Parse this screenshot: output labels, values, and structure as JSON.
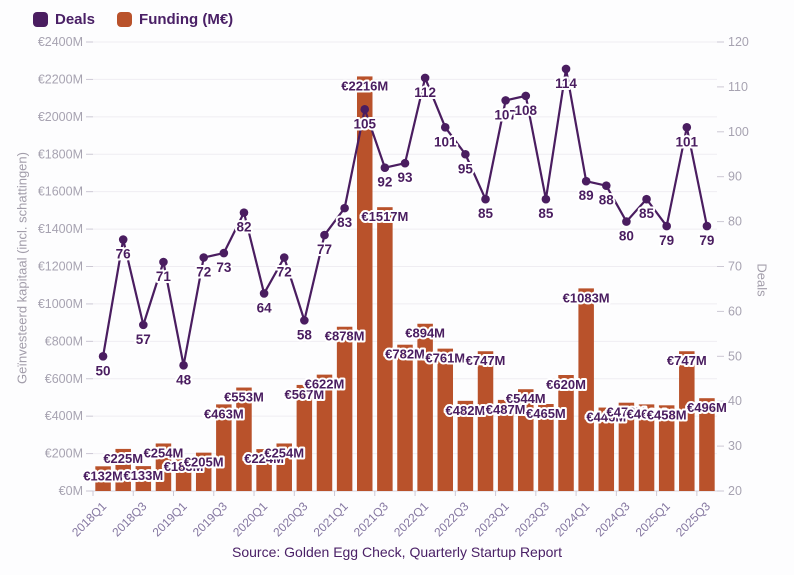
{
  "legend": {
    "items": [
      {
        "label": "Deals",
        "color": "#4a1d60"
      },
      {
        "label": "Funding (M€)",
        "color": "#b9522b"
      }
    ]
  },
  "source": {
    "text": "Source: Golden Egg Check, Quarterly Startup Report"
  },
  "chart_data": {
    "type": "combo",
    "categories": [
      "2018Q1",
      "2018Q2",
      "2018Q3",
      "2018Q4",
      "2019Q1",
      "2019Q2",
      "2019Q3",
      "2019Q4",
      "2020Q1",
      "2020Q2",
      "2020Q3",
      "2020Q4",
      "2021Q1",
      "2021Q2",
      "2021Q3",
      "2021Q4",
      "2022Q1",
      "2022Q2",
      "2022Q3",
      "2022Q4",
      "2023Q1",
      "2023Q2",
      "2023Q3",
      "2023Q4",
      "2024Q1",
      "2024Q2",
      "2024Q3",
      "2024Q4",
      "2025Q1",
      "2025Q2",
      "2025Q3"
    ],
    "series": [
      {
        "name": "Funding (M€)",
        "type": "bar",
        "axis": "left",
        "color": "#b9522b",
        "label_color": "#4a1d60",
        "label_prefix": "€",
        "label_suffix": "M",
        "values": [
          132,
          225,
          133,
          254,
          183,
          205,
          463,
          553,
          224,
          254,
          567,
          622,
          878,
          2216,
          1517,
          782,
          894,
          761,
          482,
          747,
          487,
          544,
          465,
          620,
          1083,
          446,
          472,
          463,
          458,
          747,
          496
        ]
      },
      {
        "name": "Deals",
        "type": "line",
        "axis": "right",
        "color": "#4a1d60",
        "label_color": "#4a1d60",
        "values": [
          50,
          76,
          57,
          71,
          48,
          72,
          73,
          82,
          64,
          72,
          58,
          77,
          83,
          105,
          92,
          93,
          112,
          101,
          95,
          85,
          107,
          108,
          85,
          114,
          89,
          88,
          80,
          85,
          79,
          101,
          79
        ]
      }
    ],
    "left_axis": {
      "title": "Geïnvesteerd kapitaal (incl. schattingen)",
      "min": 0,
      "max": 2400,
      "step": 200,
      "tick_prefix": "€",
      "tick_suffix": "M"
    },
    "right_axis": {
      "title": "Deals",
      "min": 20,
      "max": 120,
      "step": 10
    },
    "x_axis": {
      "tick_label_interval": 2
    },
    "grid": true,
    "legend_position": "top-left"
  }
}
